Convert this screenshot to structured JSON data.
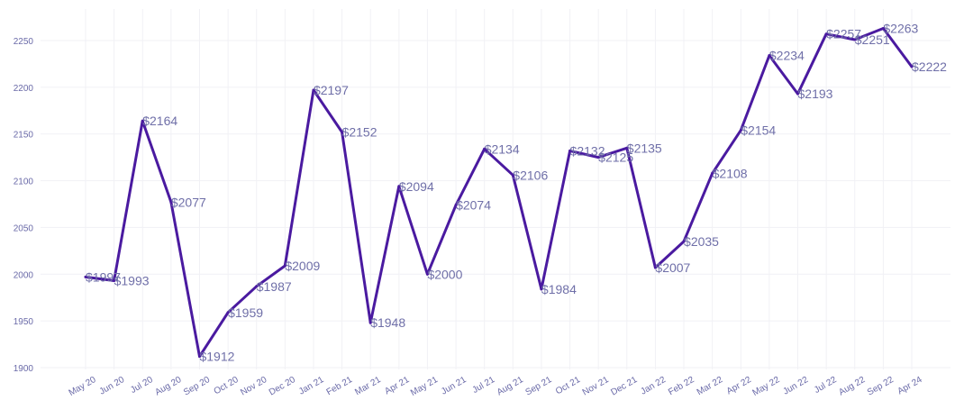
{
  "chart_data": {
    "type": "line",
    "title": "",
    "xlabel": "",
    "ylabel": "",
    "ylim": [
      1900,
      2270
    ],
    "yticks": [
      1900,
      1950,
      2000,
      2050,
      2100,
      2150,
      2200,
      2250
    ],
    "grid": true,
    "legend": "none",
    "line_color": "#4a1aa0",
    "label_prefix": "$",
    "categories": [
      "May 20",
      "Jun 20",
      "Jul 20",
      "Aug 20",
      "Sep 20",
      "Oct 20",
      "Nov 20",
      "Dec 20",
      "Jan 21",
      "Feb 21",
      "Mar 21",
      "Apr 21",
      "May 21",
      "Jun 21",
      "Jul 21",
      "Aug 21",
      "Sep 21",
      "Oct 21",
      "Nov 21",
      "Dec 21",
      "Jan 22",
      "Feb 22",
      "Mar 22",
      "Apr 22",
      "May 22",
      "Jun 22",
      "Jul 22",
      "Aug 22",
      "Sep 22",
      "Apr 24"
    ],
    "series": [
      {
        "values": [
          1997,
          1993,
          2164,
          2077,
          1912,
          1959,
          1987,
          2009,
          2197,
          2152,
          1948,
          2094,
          2000,
          2074,
          2134,
          2106,
          1984,
          2132,
          2125,
          2135,
          2007,
          2035,
          2108,
          2154,
          2234,
          2193,
          2257,
          2251,
          2263,
          2222
        ]
      }
    ]
  }
}
